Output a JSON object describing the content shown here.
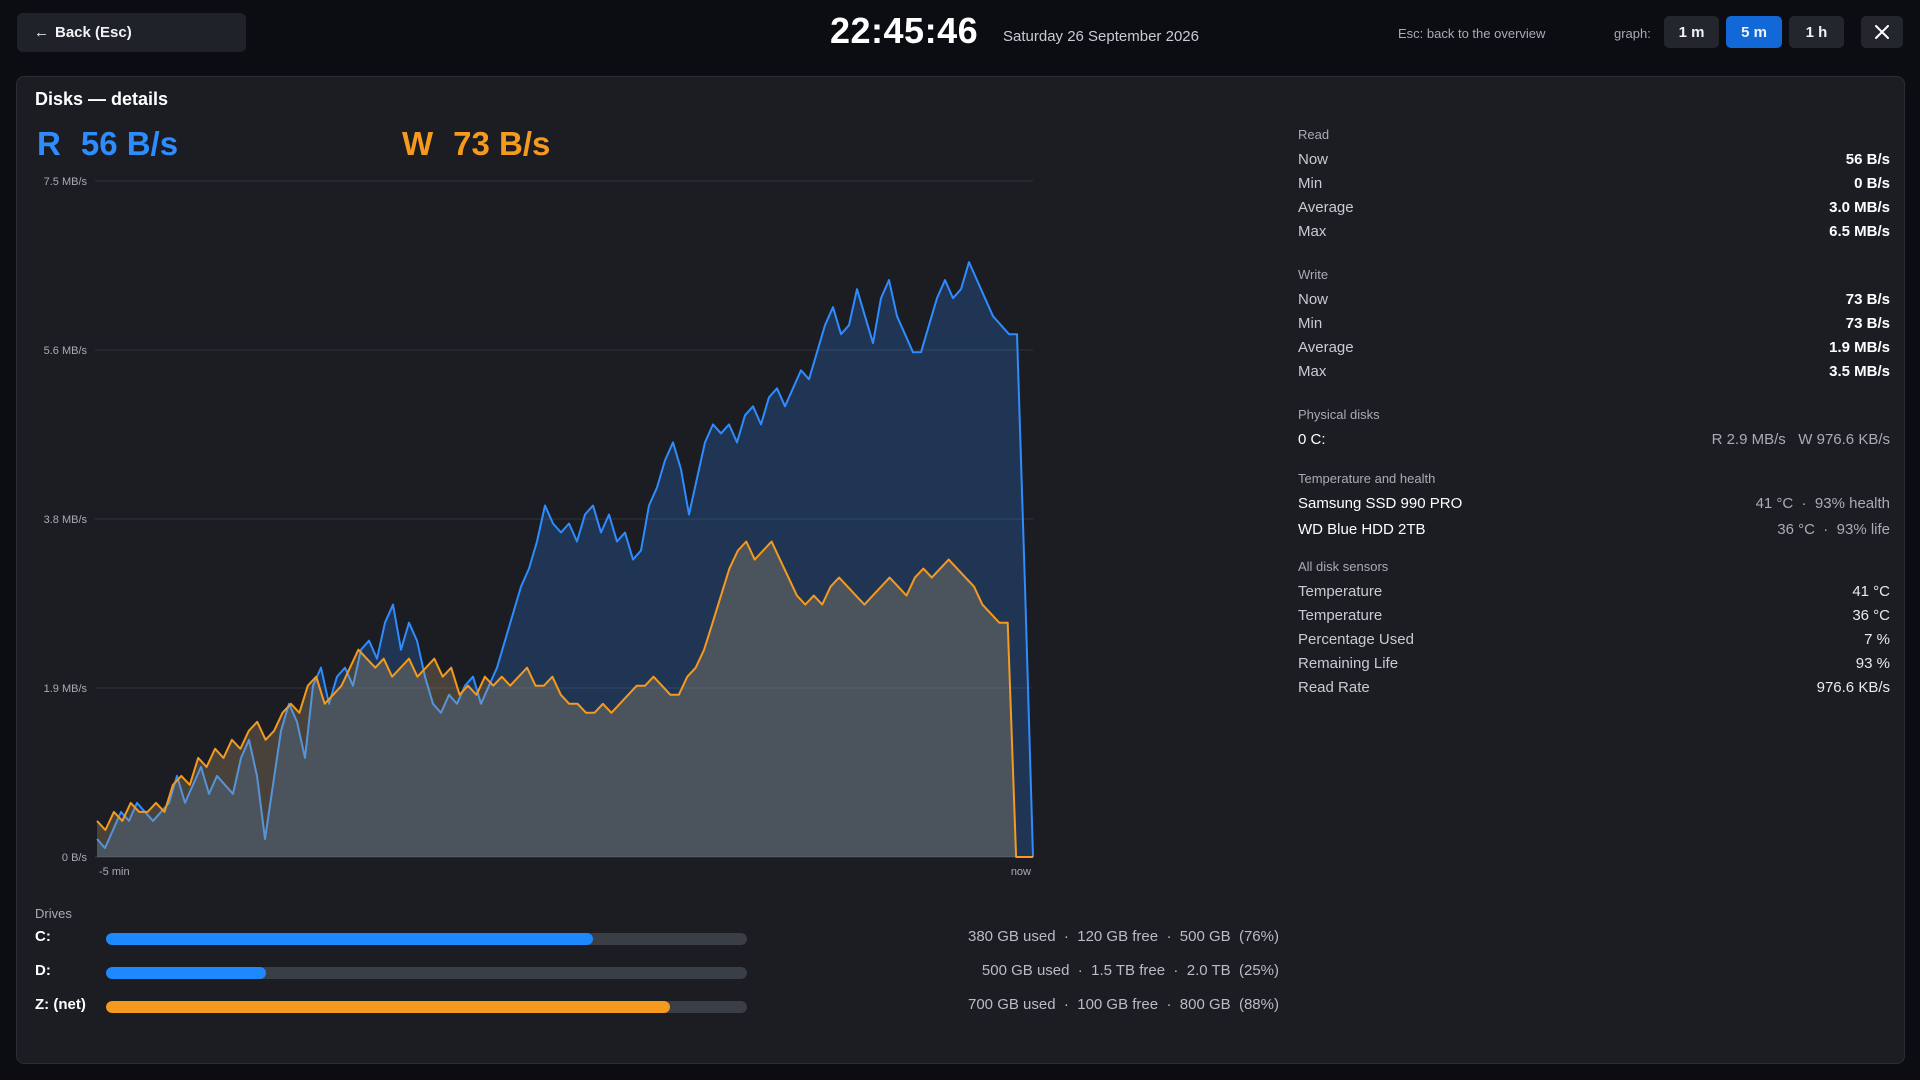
{
  "topbar": {
    "back_label": "Back (Esc)",
    "back_arrow": "←",
    "clock": "22:45:46",
    "date": "Saturday 26 September 2026",
    "esc_hint": "Esc: back to the overview",
    "graph_label": "graph:",
    "ranges": [
      "1 m",
      "5 m",
      "1 h"
    ],
    "active_range": "5 m",
    "close_icon": "✕"
  },
  "panel": {
    "title": "Disks — details",
    "read_tag": "R",
    "read_now": "56 B/s",
    "write_tag": "W",
    "write_now": "73 B/s"
  },
  "colors": {
    "read": "#2f8cff",
    "write": "#f59a1e",
    "active_button": "#1268d6",
    "drive_c": "#1e88ff",
    "drive_d": "#1e88ff",
    "drive_z": "#f59a1e"
  },
  "chart_data": {
    "type": "area",
    "x_labels": [
      "-5 min",
      "now"
    ],
    "y_ticks": [
      "7.5 MB/s",
      "5.6 MB/s",
      "3.8 MB/s",
      "1.9 MB/s",
      "0 B/s"
    ],
    "ylim": [
      0,
      7.5
    ],
    "grid": true,
    "series": [
      {
        "name": "R",
        "color": "#2f8cff",
        "values": [
          0.2,
          0.1,
          0.3,
          0.5,
          0.4,
          0.6,
          0.5,
          0.4,
          0.5,
          0.6,
          0.9,
          0.6,
          0.8,
          1.0,
          0.7,
          0.9,
          0.8,
          0.7,
          1.1,
          1.3,
          0.9,
          0.2,
          0.8,
          1.4,
          1.7,
          1.5,
          1.1,
          1.9,
          2.1,
          1.7,
          2.0,
          2.1,
          1.9,
          2.3,
          2.4,
          2.2,
          2.6,
          2.8,
          2.3,
          2.6,
          2.4,
          2.0,
          1.7,
          1.6,
          1.8,
          1.7,
          1.9,
          2.0,
          1.7,
          1.9,
          2.1,
          2.4,
          2.7,
          3.0,
          3.2,
          3.5,
          3.9,
          3.7,
          3.6,
          3.7,
          3.5,
          3.8,
          3.9,
          3.6,
          3.8,
          3.5,
          3.6,
          3.3,
          3.4,
          3.9,
          4.1,
          4.4,
          4.6,
          4.3,
          3.8,
          4.2,
          4.6,
          4.8,
          4.7,
          4.8,
          4.6,
          4.9,
          5.0,
          4.8,
          5.1,
          5.2,
          5.0,
          5.2,
          5.4,
          5.3,
          5.6,
          5.9,
          6.1,
          5.8,
          5.9,
          6.3,
          6.0,
          5.7,
          6.2,
          6.4,
          6.0,
          5.8,
          5.6,
          5.6,
          5.9,
          6.2,
          6.4,
          6.2,
          6.3,
          6.6,
          6.4,
          6.2,
          6.0,
          5.9,
          5.8,
          5.8,
          3.0,
          0.0
        ]
      },
      {
        "name": "W",
        "color": "#f59a1e",
        "values": [
          0.4,
          0.3,
          0.5,
          0.4,
          0.6,
          0.5,
          0.5,
          0.6,
          0.5,
          0.8,
          0.9,
          0.8,
          1.1,
          1.0,
          1.2,
          1.1,
          1.3,
          1.2,
          1.4,
          1.5,
          1.3,
          1.4,
          1.6,
          1.7,
          1.6,
          1.9,
          2.0,
          1.7,
          1.8,
          1.9,
          2.1,
          2.3,
          2.2,
          2.1,
          2.2,
          2.0,
          2.1,
          2.2,
          2.0,
          2.1,
          2.2,
          2.0,
          2.1,
          1.8,
          1.9,
          1.8,
          2.0,
          1.9,
          2.0,
          1.9,
          2.0,
          2.1,
          1.9,
          1.9,
          2.0,
          1.8,
          1.7,
          1.7,
          1.6,
          1.6,
          1.7,
          1.6,
          1.7,
          1.8,
          1.9,
          1.9,
          2.0,
          1.9,
          1.8,
          1.8,
          2.0,
          2.1,
          2.3,
          2.6,
          2.9,
          3.2,
          3.4,
          3.5,
          3.3,
          3.4,
          3.5,
          3.3,
          3.1,
          2.9,
          2.8,
          2.9,
          2.8,
          3.0,
          3.1,
          3.0,
          2.9,
          2.8,
          2.9,
          3.0,
          3.1,
          3.0,
          2.9,
          3.1,
          3.2,
          3.1,
          3.2,
          3.3,
          3.2,
          3.1,
          3.0,
          2.8,
          2.7,
          2.6,
          2.6,
          0.0,
          0.0,
          0.0
        ]
      }
    ]
  },
  "stats": {
    "read": {
      "title": "Read",
      "rows": [
        {
          "k": "Now",
          "v": "56 B/s"
        },
        {
          "k": "Min",
          "v": "0 B/s"
        },
        {
          "k": "Average",
          "v": "3.0 MB/s"
        },
        {
          "k": "Max",
          "v": "6.5 MB/s"
        }
      ]
    },
    "write": {
      "title": "Write",
      "rows": [
        {
          "k": "Now",
          "v": "73 B/s"
        },
        {
          "k": "Min",
          "v": "73 B/s"
        },
        {
          "k": "Average",
          "v": "1.9 MB/s"
        },
        {
          "k": "Max",
          "v": "3.5 MB/s"
        }
      ]
    },
    "physical": {
      "title": "Physical disks",
      "rows": [
        {
          "k": "0 C:",
          "v": "R 2.9 MB/s   W 976.6 KB/s"
        }
      ]
    },
    "health": {
      "title": "Temperature and health",
      "rows": [
        {
          "k": "Samsung SSD 990 PRO",
          "v": "41 °C  ·  93% health"
        },
        {
          "k": "WD Blue HDD 2TB",
          "v": "36 °C  ·  93% life"
        }
      ]
    },
    "sensors": {
      "title": "All disk sensors",
      "rows": [
        {
          "k": "Temperature",
          "v": "41 °C"
        },
        {
          "k": "Temperature",
          "v": "36 °C"
        },
        {
          "k": "Percentage Used",
          "v": "7 %"
        },
        {
          "k": "Remaining Life",
          "v": "93 %"
        },
        {
          "k": "Read Rate",
          "v": "976.6 KB/s"
        }
      ]
    }
  },
  "drives": {
    "title": "Drives",
    "items": [
      {
        "label": "C:",
        "used_fraction": 0.76,
        "color": "#1e88ff",
        "info": "380 GB used  ·  120 GB free  ·  500 GB  (76%)"
      },
      {
        "label": "D:",
        "used_fraction": 0.25,
        "color": "#1e88ff",
        "info": "500 GB used  ·  1.5 TB free  ·  2.0 TB  (25%)"
      },
      {
        "label": "Z: (net)",
        "used_fraction": 0.88,
        "color": "#f59a1e",
        "info": "700 GB used  ·  100 GB free  ·  800 GB  (88%)"
      }
    ]
  }
}
